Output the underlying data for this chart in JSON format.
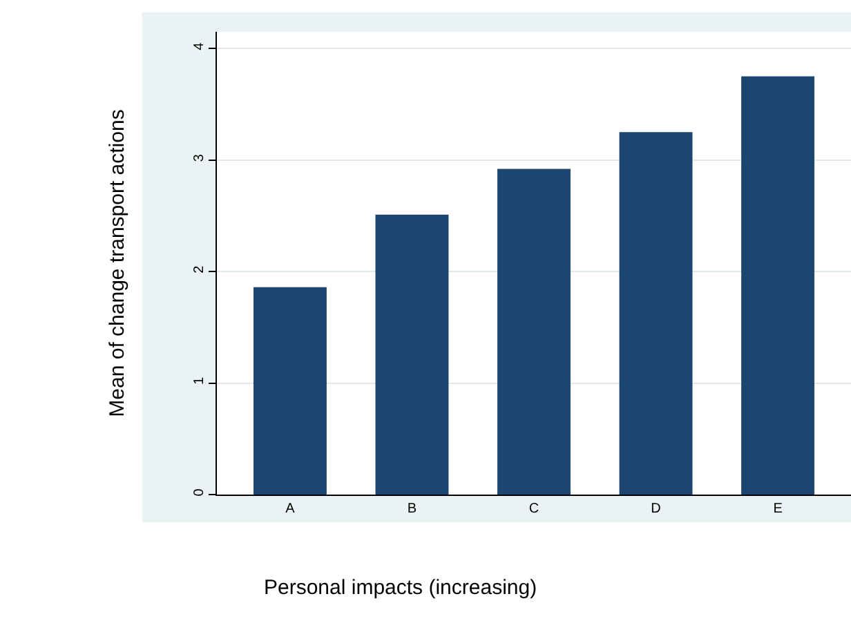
{
  "chart_data": {
    "type": "bar",
    "xlabel": "Personal impacts (increasing)",
    "ylabel": "Mean of change transport actions",
    "categories": [
      "A",
      "B",
      "C",
      "D",
      "E"
    ],
    "values": [
      1.86,
      2.51,
      2.92,
      3.25,
      3.75
    ],
    "color": "#1c466f",
    "ylim": [
      0,
      4.15
    ],
    "yticks": [
      0,
      1,
      2,
      3,
      4
    ],
    "grid": "y",
    "legend": false
  }
}
